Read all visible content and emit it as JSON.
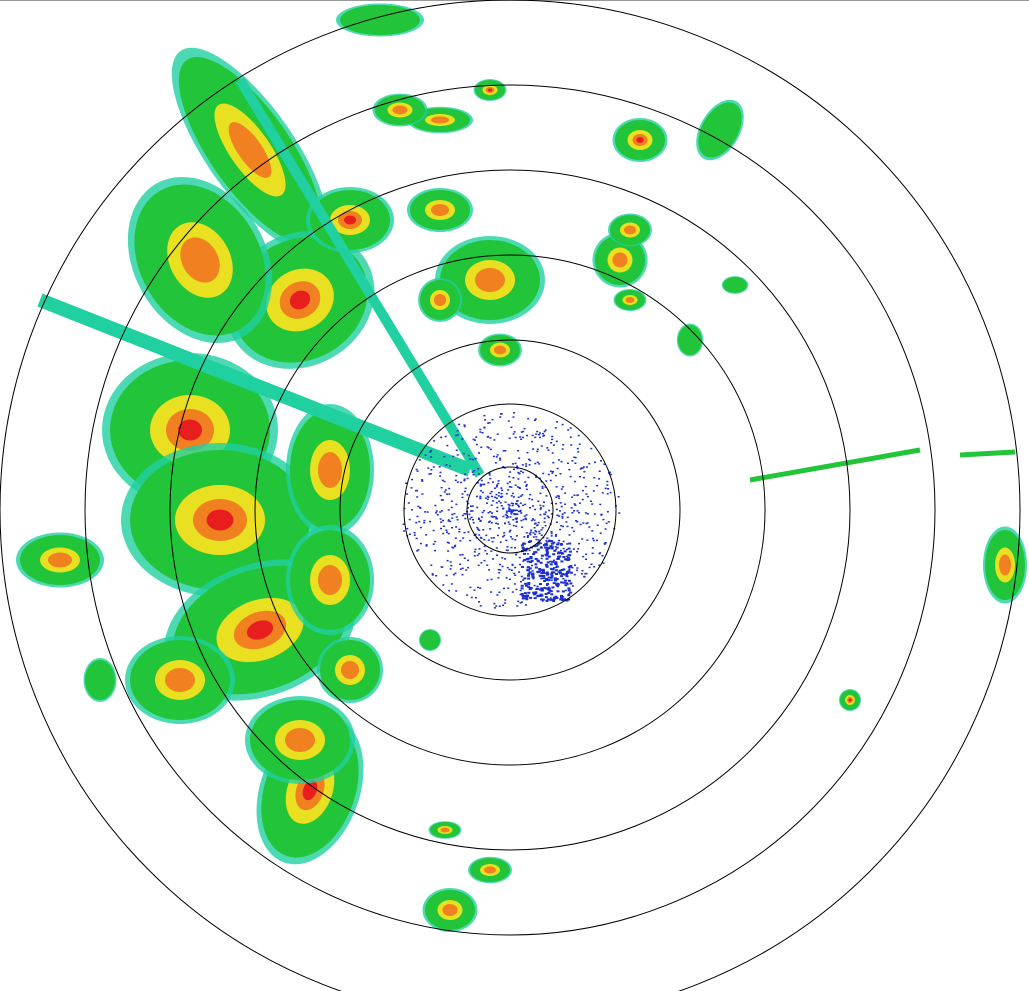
{
  "display": {
    "type": "weather-radar-ppi",
    "range_ring_count": 7,
    "ring_color": "#000000",
    "background": "#ffffff"
  },
  "colors": {
    "low": "#1a2fd0",
    "light": "#20d0a0",
    "moderate": "#22c43a",
    "heavy": "#e8e020",
    "intense": "#f08020",
    "extreme": "#e81e1e"
  }
}
